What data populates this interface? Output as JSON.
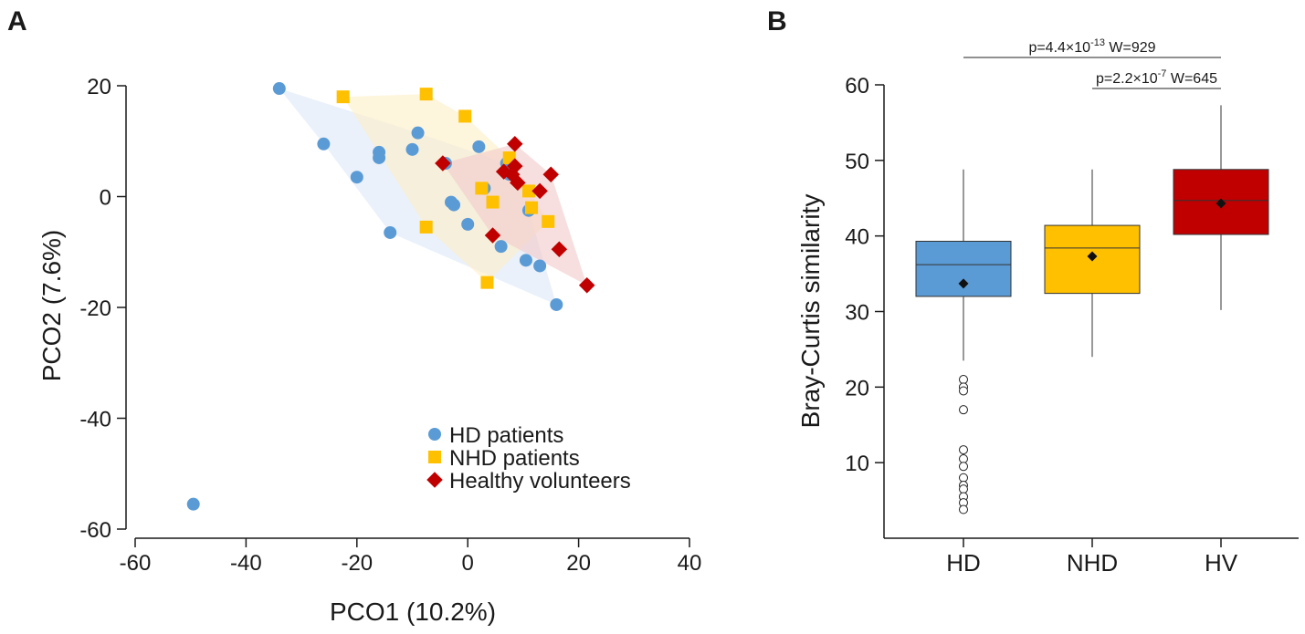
{
  "colors": {
    "hd": "#5b9bd5",
    "nhd": "#ffc000",
    "hv": "#c00000",
    "hd_hull": "#dce8f6",
    "nhd_hull": "#fdefc6",
    "hv_hull": "#f2c9c9",
    "axis": "#1a1a1a"
  },
  "chart_data": [
    {
      "panel": "A",
      "type": "scatter",
      "xlabel": "PCO1 (10.2%)",
      "ylabel": "PCO2 (7.6%)",
      "xlim": [
        -60,
        40
      ],
      "ylim": [
        -60,
        20
      ],
      "xticks": [
        -60,
        -40,
        -20,
        0,
        20,
        40
      ],
      "yticks": [
        20,
        0,
        -20,
        -40,
        -60
      ],
      "xtick_labels": [
        "-60",
        "-40",
        "-20",
        "0",
        "20",
        "40"
      ],
      "ytick_labels": [
        "20",
        "0",
        "-20",
        "-40",
        "-60"
      ],
      "legend_position": "bottom-right",
      "series": [
        {
          "name": "HD patients",
          "marker": "circle",
          "color_key": "hd",
          "hull_key": "hd_hull",
          "points": [
            [
              -34,
              19.5
            ],
            [
              -26,
              9.5
            ],
            [
              -20,
              3.5
            ],
            [
              -16,
              8
            ],
            [
              -16,
              7
            ],
            [
              -10,
              8.5
            ],
            [
              -9,
              11.5
            ],
            [
              -14,
              -6.5
            ],
            [
              -4,
              6
            ],
            [
              -3,
              -1
            ],
            [
              -2.5,
              -1.5
            ],
            [
              0,
              -5
            ],
            [
              2,
              9
            ],
            [
              3,
              1.5
            ],
            [
              6,
              -9
            ],
            [
              7,
              6
            ],
            [
              7.5,
              4
            ],
            [
              11,
              -2.5
            ],
            [
              10.5,
              -11.5
            ],
            [
              13,
              -12.5
            ],
            [
              16,
              -19.5
            ],
            [
              -49.5,
              -55.5
            ]
          ],
          "hull": [
            [
              -34,
              19.5
            ],
            [
              -9,
              11.5
            ],
            [
              7,
              6
            ],
            [
              11,
              -2.5
            ],
            [
              16,
              -19.5
            ],
            [
              -14,
              -6.5
            ],
            [
              -26,
              9.5
            ]
          ]
        },
        {
          "name": "NHD patients",
          "marker": "square",
          "color_key": "nhd",
          "hull_key": "nhd_hull",
          "points": [
            [
              -22.5,
              18
            ],
            [
              -7.5,
              18.5
            ],
            [
              -0.5,
              14.5
            ],
            [
              7.5,
              7
            ],
            [
              2.5,
              1.5
            ],
            [
              4.5,
              -1
            ],
            [
              11,
              1
            ],
            [
              11.5,
              -2
            ],
            [
              14.5,
              -4.5
            ],
            [
              -7.5,
              -5.5
            ],
            [
              3.5,
              -15.5
            ]
          ],
          "hull": [
            [
              -22.5,
              18
            ],
            [
              -7.5,
              18.5
            ],
            [
              -0.5,
              14.5
            ],
            [
              7.5,
              7
            ],
            [
              14.5,
              -4.5
            ],
            [
              3.5,
              -15.5
            ],
            [
              -7.5,
              -5.5
            ]
          ]
        },
        {
          "name": "Healthy volunteers",
          "marker": "diamond",
          "color_key": "hv",
          "hull_key": "hv_hull",
          "points": [
            [
              8.5,
              9.5
            ],
            [
              -4.5,
              6
            ],
            [
              6.5,
              4.5
            ],
            [
              8,
              4
            ],
            [
              8.5,
              5.5
            ],
            [
              9,
              2.5
            ],
            [
              13,
              1
            ],
            [
              15,
              4
            ],
            [
              4.5,
              -7
            ],
            [
              16.5,
              -9.5
            ],
            [
              21.5,
              -16
            ]
          ],
          "hull": [
            [
              8.5,
              9.5
            ],
            [
              15,
              4
            ],
            [
              21.5,
              -16
            ],
            [
              4.5,
              -7
            ],
            [
              -4.5,
              6
            ]
          ]
        }
      ]
    },
    {
      "panel": "B",
      "type": "box",
      "ylabel": "Bray-Curtis similarity",
      "ylim": [
        0,
        60
      ],
      "yticks": [
        10,
        20,
        30,
        40,
        50,
        60
      ],
      "ytick_labels": [
        "10",
        "20",
        "30",
        "40",
        "50",
        "60"
      ],
      "categories": [
        "HD",
        "NHD",
        "HV"
      ],
      "boxes": [
        {
          "name": "HD",
          "color_key": "hd",
          "whisker_low": 23.5,
          "q1": 32,
          "median": 36.2,
          "q3": 39.3,
          "whisker_high": 48.8,
          "mean": 33.7,
          "outliers": [
            21,
            20,
            19.5,
            17,
            11.7,
            10.5,
            9.5,
            8,
            7,
            6.5,
            5.5,
            4.7,
            3.8
          ]
        },
        {
          "name": "NHD",
          "color_key": "nhd",
          "whisker_low": 24,
          "q1": 32.4,
          "median": 38.4,
          "q3": 41.4,
          "whisker_high": 48.8,
          "mean": 37.3,
          "outliers": []
        },
        {
          "name": "HV",
          "color_key": "hv",
          "whisker_low": 30.2,
          "q1": 40.2,
          "median": 44.7,
          "q3": 48.8,
          "whisker_high": 57.3,
          "mean": 44.3,
          "outliers": []
        }
      ],
      "comparisons": [
        {
          "from": "HD",
          "to": "HV",
          "p_base": "p=4.4×10",
          "p_exp": "-13",
          "w": "W=929"
        },
        {
          "from": "NHD",
          "to": "HV",
          "p_base": "p=2.2×10",
          "p_exp": "-7",
          "w": "W=645"
        }
      ]
    }
  ],
  "panel_labels": {
    "a": "A",
    "b": "B"
  }
}
